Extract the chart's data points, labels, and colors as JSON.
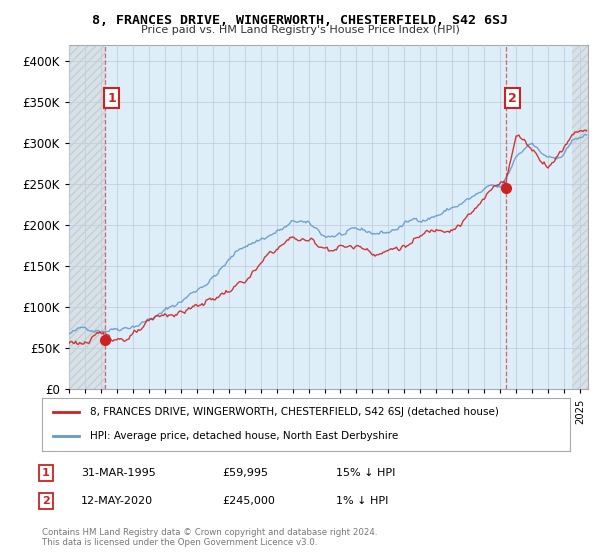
{
  "title1": "8, FRANCES DRIVE, WINGERWORTH, CHESTERFIELD, S42 6SJ",
  "title2": "Price paid vs. HM Land Registry's House Price Index (HPI)",
  "background_color": "#ffffff",
  "plot_bg_color": "#ddeeff",
  "legend_line1": "8, FRANCES DRIVE, WINGERWORTH, CHESTERFIELD, S42 6SJ (detached house)",
  "legend_line2": "HPI: Average price, detached house, North East Derbyshire",
  "annotation1_date": "31-MAR-1995",
  "annotation1_price": "£59,995",
  "annotation1_hpi": "15% ↓ HPI",
  "annotation2_date": "12-MAY-2020",
  "annotation2_price": "£245,000",
  "annotation2_hpi": "1% ↓ HPI",
  "footer": "Contains HM Land Registry data © Crown copyright and database right 2024.\nThis data is licensed under the Open Government Licence v3.0.",
  "ylim_min": 0,
  "ylim_max": 420000,
  "sale1_year": 1995.25,
  "sale1_value": 59995,
  "sale2_year": 2020.37,
  "sale2_value": 245000,
  "red_color": "#cc2222",
  "blue_color": "#6699cc",
  "xlim_min": 1993,
  "xlim_max": 2025.5
}
